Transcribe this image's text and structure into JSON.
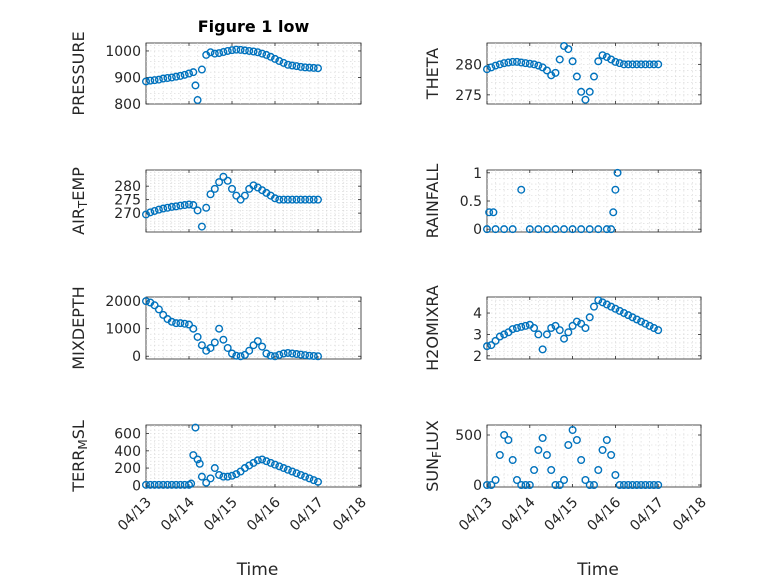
{
  "figure": {
    "colors": {
      "marker": "#0072BD",
      "axes": "#262626",
      "grid": "#d6d6d6"
    }
  },
  "chart_data": [
    {
      "type": "scatter",
      "title": "Figure 1 low",
      "ylabel": [
        "PRESSURE"
      ],
      "xlabel": "",
      "xtick_labels": [],
      "ylim": [
        800,
        1030
      ],
      "yticks": [
        800,
        900,
        1000
      ],
      "y_tick_labels": [
        "800",
        "900",
        "1000"
      ],
      "x": [
        0.0,
        0.1,
        0.2,
        0.3,
        0.4,
        0.5,
        0.6,
        0.7,
        0.8,
        0.9,
        1.0,
        1.1,
        1.15,
        1.2,
        1.3,
        1.4,
        1.5,
        1.6,
        1.7,
        1.8,
        1.9,
        2.0,
        2.1,
        2.2,
        2.3,
        2.4,
        2.5,
        2.6,
        2.7,
        2.8,
        2.9,
        3.0,
        3.1,
        3.2,
        3.3,
        3.4,
        3.5,
        3.6,
        3.7,
        3.8,
        3.9,
        4.0
      ],
      "y": [
        885,
        888,
        890,
        892,
        896,
        898,
        900,
        903,
        906,
        910,
        915,
        920,
        870,
        815,
        930,
        985,
        995,
        990,
        992,
        996,
        1000,
        1003,
        1005,
        1004,
        1002,
        1000,
        998,
        995,
        990,
        985,
        978,
        970,
        962,
        955,
        948,
        945,
        943,
        940,
        938,
        937,
        936,
        935
      ]
    },
    {
      "type": "scatter",
      "ylabel": [
        "THETA"
      ],
      "xlabel": "",
      "xtick_labels": [],
      "ylim": [
        273.5,
        283.5
      ],
      "yticks": [
        275,
        280
      ],
      "y_tick_labels": [
        "275",
        "280"
      ],
      "x": [
        0.0,
        0.1,
        0.2,
        0.3,
        0.4,
        0.5,
        0.6,
        0.7,
        0.8,
        0.9,
        1.0,
        1.1,
        1.2,
        1.3,
        1.4,
        1.5,
        1.6,
        1.7,
        1.8,
        1.9,
        2.0,
        2.1,
        2.2,
        2.3,
        2.4,
        2.5,
        2.6,
        2.7,
        2.8,
        2.9,
        3.0,
        3.1,
        3.2,
        3.3,
        3.4,
        3.5,
        3.6,
        3.7,
        3.8,
        3.9,
        4.0
      ],
      "y": [
        279.2,
        279.5,
        279.8,
        280.0,
        280.2,
        280.3,
        280.4,
        280.4,
        280.3,
        280.2,
        280.1,
        280.0,
        279.8,
        279.5,
        279.0,
        278.2,
        278.6,
        280.8,
        283.0,
        282.5,
        280.5,
        278.0,
        275.5,
        274.2,
        275.5,
        278.0,
        280.5,
        281.5,
        281.2,
        280.8,
        280.4,
        280.2,
        280.0,
        280.0,
        280.0,
        280.0,
        280.0,
        280.0,
        280.0,
        280.0,
        280.0
      ]
    },
    {
      "type": "scatter",
      "ylabel": [
        "AIR",
        "T",
        "EMP"
      ],
      "xlabel": "",
      "xtick_labels": [],
      "ylim": [
        263,
        286
      ],
      "yticks": [
        270,
        275,
        280
      ],
      "y_tick_labels": [
        "270",
        "275",
        "280"
      ],
      "x": [
        0.0,
        0.1,
        0.2,
        0.3,
        0.4,
        0.5,
        0.6,
        0.7,
        0.8,
        0.9,
        1.0,
        1.1,
        1.2,
        1.3,
        1.4,
        1.5,
        1.6,
        1.7,
        1.8,
        1.9,
        2.0,
        2.1,
        2.2,
        2.3,
        2.4,
        2.5,
        2.6,
        2.7,
        2.8,
        2.9,
        3.0,
        3.1,
        3.2,
        3.3,
        3.4,
        3.5,
        3.6,
        3.7,
        3.8,
        3.9,
        4.0
      ],
      "y": [
        269.5,
        270.3,
        270.8,
        271.3,
        271.7,
        272.0,
        272.3,
        272.5,
        272.8,
        273.0,
        273.2,
        273.0,
        271.0,
        265.0,
        272.0,
        277.0,
        279.0,
        281.5,
        283.5,
        282.0,
        279.0,
        276.5,
        275.0,
        276.5,
        279.0,
        280.3,
        279.5,
        278.5,
        277.5,
        276.5,
        275.5,
        275.0,
        275.0,
        275.0,
        275.0,
        275.0,
        275.0,
        275.0,
        275.0,
        275.0,
        275.0
      ]
    },
    {
      "type": "scatter",
      "ylabel": [
        "RAINFALL"
      ],
      "xlabel": "",
      "xtick_labels": [],
      "ylim": [
        -0.05,
        1.05
      ],
      "yticks": [
        0,
        0.5,
        1
      ],
      "y_tick_labels": [
        "0",
        "0.5",
        "1"
      ],
      "x": [
        0.0,
        0.05,
        0.15,
        0.2,
        0.4,
        0.6,
        0.8,
        1.0,
        1.2,
        1.4,
        1.6,
        1.8,
        2.0,
        2.2,
        2.4,
        2.6,
        2.8,
        2.9,
        2.95,
        3.0,
        3.05
      ],
      "y": [
        0.0,
        0.3,
        0.3,
        0.0,
        0.0,
        0.0,
        0.7,
        0.0,
        0.0,
        0.0,
        0.0,
        0.0,
        0.0,
        0.0,
        0.0,
        0.0,
        0.0,
        0.0,
        0.3,
        0.7,
        1.0
      ]
    },
    {
      "type": "scatter",
      "ylabel": [
        "MIXDEPTH"
      ],
      "xlabel": "",
      "xtick_labels": [],
      "ylim": [
        -100,
        2150
      ],
      "yticks": [
        0,
        1000,
        2000
      ],
      "y_tick_labels": [
        "0",
        "1000",
        "2000"
      ],
      "x": [
        0.0,
        0.1,
        0.2,
        0.3,
        0.4,
        0.5,
        0.6,
        0.7,
        0.8,
        0.9,
        1.0,
        1.1,
        1.2,
        1.3,
        1.4,
        1.5,
        1.6,
        1.7,
        1.8,
        1.9,
        2.0,
        2.1,
        2.2,
        2.3,
        2.4,
        2.5,
        2.6,
        2.7,
        2.8,
        2.9,
        3.0,
        3.1,
        3.2,
        3.3,
        3.4,
        3.5,
        3.6,
        3.7,
        3.8,
        3.9,
        4.0
      ],
      "y": [
        2000,
        1950,
        1850,
        1700,
        1500,
        1350,
        1250,
        1200,
        1200,
        1180,
        1150,
        1000,
        700,
        400,
        200,
        300,
        500,
        1000,
        600,
        300,
        100,
        20,
        0,
        50,
        200,
        400,
        550,
        350,
        100,
        20,
        0,
        50,
        100,
        120,
        100,
        80,
        60,
        40,
        20,
        10,
        0
      ]
    },
    {
      "type": "scatter",
      "ylabel": [
        "H2OMIXRA"
      ],
      "xlabel": "",
      "xtick_labels": [],
      "ylim": [
        1.85,
        4.75
      ],
      "yticks": [
        2,
        3,
        4
      ],
      "y_tick_labels": [
        "2",
        "3",
        "4"
      ],
      "x": [
        0.0,
        0.1,
        0.2,
        0.3,
        0.4,
        0.5,
        0.6,
        0.7,
        0.8,
        0.9,
        1.0,
        1.1,
        1.2,
        1.3,
        1.4,
        1.5,
        1.6,
        1.7,
        1.8,
        1.9,
        2.0,
        2.1,
        2.2,
        2.3,
        2.4,
        2.5,
        2.6,
        2.7,
        2.8,
        2.9,
        3.0,
        3.1,
        3.2,
        3.3,
        3.4,
        3.5,
        3.6,
        3.7,
        3.8,
        3.9,
        4.0
      ],
      "y": [
        2.45,
        2.5,
        2.7,
        2.9,
        3.0,
        3.1,
        3.25,
        3.3,
        3.35,
        3.4,
        3.45,
        3.3,
        3.0,
        2.3,
        3.0,
        3.3,
        3.4,
        3.2,
        2.8,
        3.1,
        3.4,
        3.6,
        3.5,
        3.3,
        3.8,
        4.3,
        4.6,
        4.5,
        4.4,
        4.3,
        4.2,
        4.1,
        4.0,
        3.9,
        3.8,
        3.7,
        3.6,
        3.5,
        3.4,
        3.3,
        3.2
      ]
    },
    {
      "type": "scatter",
      "ylabel": [
        "TERR",
        "M",
        "SL"
      ],
      "xlabel": "Time",
      "xtick_labels": [
        "04/13",
        "04/14",
        "04/15",
        "04/16",
        "04/17",
        "04/18"
      ],
      "ylim": [
        -20,
        700
      ],
      "yticks": [
        0,
        200,
        400,
        600
      ],
      "y_tick_labels": [
        "0",
        "200",
        "400",
        "600"
      ],
      "x": [
        0.0,
        0.1,
        0.2,
        0.3,
        0.4,
        0.5,
        0.6,
        0.7,
        0.8,
        0.9,
        1.0,
        1.05,
        1.1,
        1.15,
        1.2,
        1.25,
        1.3,
        1.4,
        1.5,
        1.6,
        1.7,
        1.8,
        1.9,
        2.0,
        2.1,
        2.2,
        2.3,
        2.4,
        2.5,
        2.6,
        2.7,
        2.8,
        2.9,
        3.0,
        3.1,
        3.2,
        3.3,
        3.4,
        3.5,
        3.6,
        3.7,
        3.8,
        3.9,
        4.0
      ],
      "y": [
        5,
        5,
        5,
        5,
        5,
        5,
        5,
        5,
        5,
        5,
        5,
        20,
        350,
        670,
        300,
        250,
        100,
        30,
        80,
        200,
        120,
        100,
        100,
        110,
        130,
        160,
        200,
        230,
        260,
        290,
        300,
        280,
        260,
        240,
        220,
        200,
        180,
        160,
        140,
        120,
        100,
        80,
        60,
        40
      ]
    },
    {
      "type": "scatter",
      "ylabel": [
        "SUN",
        "F",
        "LUX"
      ],
      "xlabel": "Time",
      "xtick_labels": [
        "04/13",
        "04/14",
        "04/15",
        "04/16",
        "04/17",
        "04/18"
      ],
      "ylim": [
        -20,
        600
      ],
      "yticks": [
        0,
        500
      ],
      "y_tick_labels": [
        "0",
        "500"
      ],
      "x": [
        0.0,
        0.1,
        0.2,
        0.3,
        0.4,
        0.5,
        0.6,
        0.7,
        0.8,
        0.9,
        1.0,
        1.1,
        1.2,
        1.3,
        1.4,
        1.5,
        1.6,
        1.7,
        1.8,
        1.9,
        2.0,
        2.1,
        2.2,
        2.3,
        2.4,
        2.5,
        2.6,
        2.7,
        2.8,
        2.9,
        3.0,
        3.1,
        3.2,
        3.3,
        3.4,
        3.5,
        3.6,
        3.7,
        3.8,
        3.9,
        4.0
      ],
      "y": [
        0,
        0,
        50,
        300,
        500,
        450,
        250,
        50,
        0,
        0,
        0,
        150,
        350,
        470,
        300,
        150,
        0,
        0,
        50,
        400,
        550,
        450,
        250,
        50,
        0,
        0,
        150,
        350,
        450,
        300,
        100,
        0,
        0,
        0,
        0,
        0,
        0,
        0,
        0,
        0,
        0
      ]
    }
  ]
}
